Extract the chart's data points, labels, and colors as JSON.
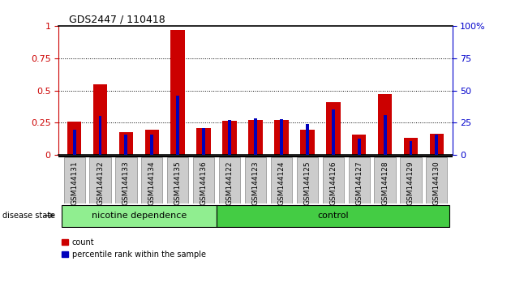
{
  "title": "GDS2447 / 110418",
  "categories": [
    "GSM144131",
    "GSM144132",
    "GSM144133",
    "GSM144134",
    "GSM144135",
    "GSM144136",
    "GSM144122",
    "GSM144123",
    "GSM144124",
    "GSM144125",
    "GSM144126",
    "GSM144127",
    "GSM144128",
    "GSM144129",
    "GSM144130"
  ],
  "red_values": [
    0.26,
    0.55,
    0.175,
    0.195,
    0.97,
    0.21,
    0.265,
    0.27,
    0.27,
    0.195,
    0.41,
    0.155,
    0.47,
    0.13,
    0.165
  ],
  "blue_values": [
    0.195,
    0.305,
    0.155,
    0.155,
    0.46,
    0.21,
    0.27,
    0.285,
    0.275,
    0.24,
    0.355,
    0.125,
    0.31,
    0.11,
    0.155
  ],
  "nicotine_count": 6,
  "control_count": 9,
  "group1_label": "nicotine dependence",
  "group2_label": "control",
  "disease_state_label": "disease state",
  "legend_count": "count",
  "legend_percentile": "percentile rank within the sample",
  "left_axis_color": "#cc0000",
  "right_axis_color": "#0000cc",
  "bar_red": "#cc0000",
  "bar_blue": "#0000bb",
  "nicotine_bg": "#90ee90",
  "control_bg": "#44cc44",
  "ylim_left": [
    0,
    1.0
  ],
  "ylim_right": [
    0,
    100
  ],
  "yticks_left": [
    0,
    0.25,
    0.5,
    0.75,
    1.0
  ],
  "yticks_right": [
    0,
    25,
    50,
    75,
    100
  ],
  "bar_width": 0.55,
  "tick_box_color": "#cccccc",
  "background_color": "#ffffff"
}
